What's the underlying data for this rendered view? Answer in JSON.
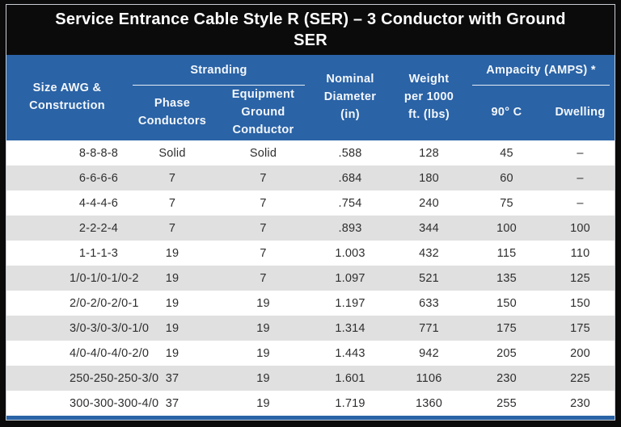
{
  "title": {
    "line1": "Service Entrance Cable Style R (SER) – 3 Conductor with Ground",
    "line2": "SER"
  },
  "table": {
    "header": {
      "size_awg": "Size AWG & Construction",
      "group_stranding": "Stranding",
      "phase_conductors": "Phase Conductors",
      "equipment_ground": "Equipment Ground Conductor",
      "nominal_diameter": "Nominal Diameter (in)",
      "weight_per_1000ft": "Weight per 1000 ft. (lbs)",
      "group_ampacity": "Ampacity (AMPS) *",
      "ampacity_90c": "90° C",
      "ampacity_dwelling": "Dwelling"
    },
    "rows": [
      [
        "8-8-8-8",
        "Solid",
        "Solid",
        ".588",
        "128",
        "45",
        "–"
      ],
      [
        "6-6-6-6",
        "7",
        "7",
        ".684",
        "180",
        "60",
        "–"
      ],
      [
        "4-4-4-6",
        "7",
        "7",
        ".754",
        "240",
        "75",
        "–"
      ],
      [
        "2-2-2-4",
        "7",
        "7",
        ".893",
        "344",
        "100",
        "100"
      ],
      [
        "1-1-1-3",
        "19",
        "7",
        "1.003",
        "432",
        "115",
        "110"
      ],
      [
        "1/0-1/0-1/0-2",
        "19",
        "7",
        "1.097",
        "521",
        "135",
        "125"
      ],
      [
        "2/0-2/0-2/0-1",
        "19",
        "19",
        "1.197",
        "633",
        "150",
        "150"
      ],
      [
        "3/0-3/0-3/0-1/0",
        "19",
        "19",
        "1.314",
        "771",
        "175",
        "175"
      ],
      [
        "4/0-4/0-4/0-2/0",
        "19",
        "19",
        "1.443",
        "942",
        "205",
        "200"
      ],
      [
        "250-250-250-3/0",
        "37",
        "19",
        "1.601",
        "1106",
        "230",
        "225"
      ],
      [
        "300-300-300-4/0",
        "37",
        "19",
        "1.719",
        "1360",
        "255",
        "230"
      ]
    ]
  },
  "colors": {
    "header_blue": "#2a63a6",
    "stripe_gray": "#e0e0e0",
    "title_bg": "#0b0b0b",
    "header_text": "#ffffff",
    "body_text": "#2e2e2e"
  }
}
